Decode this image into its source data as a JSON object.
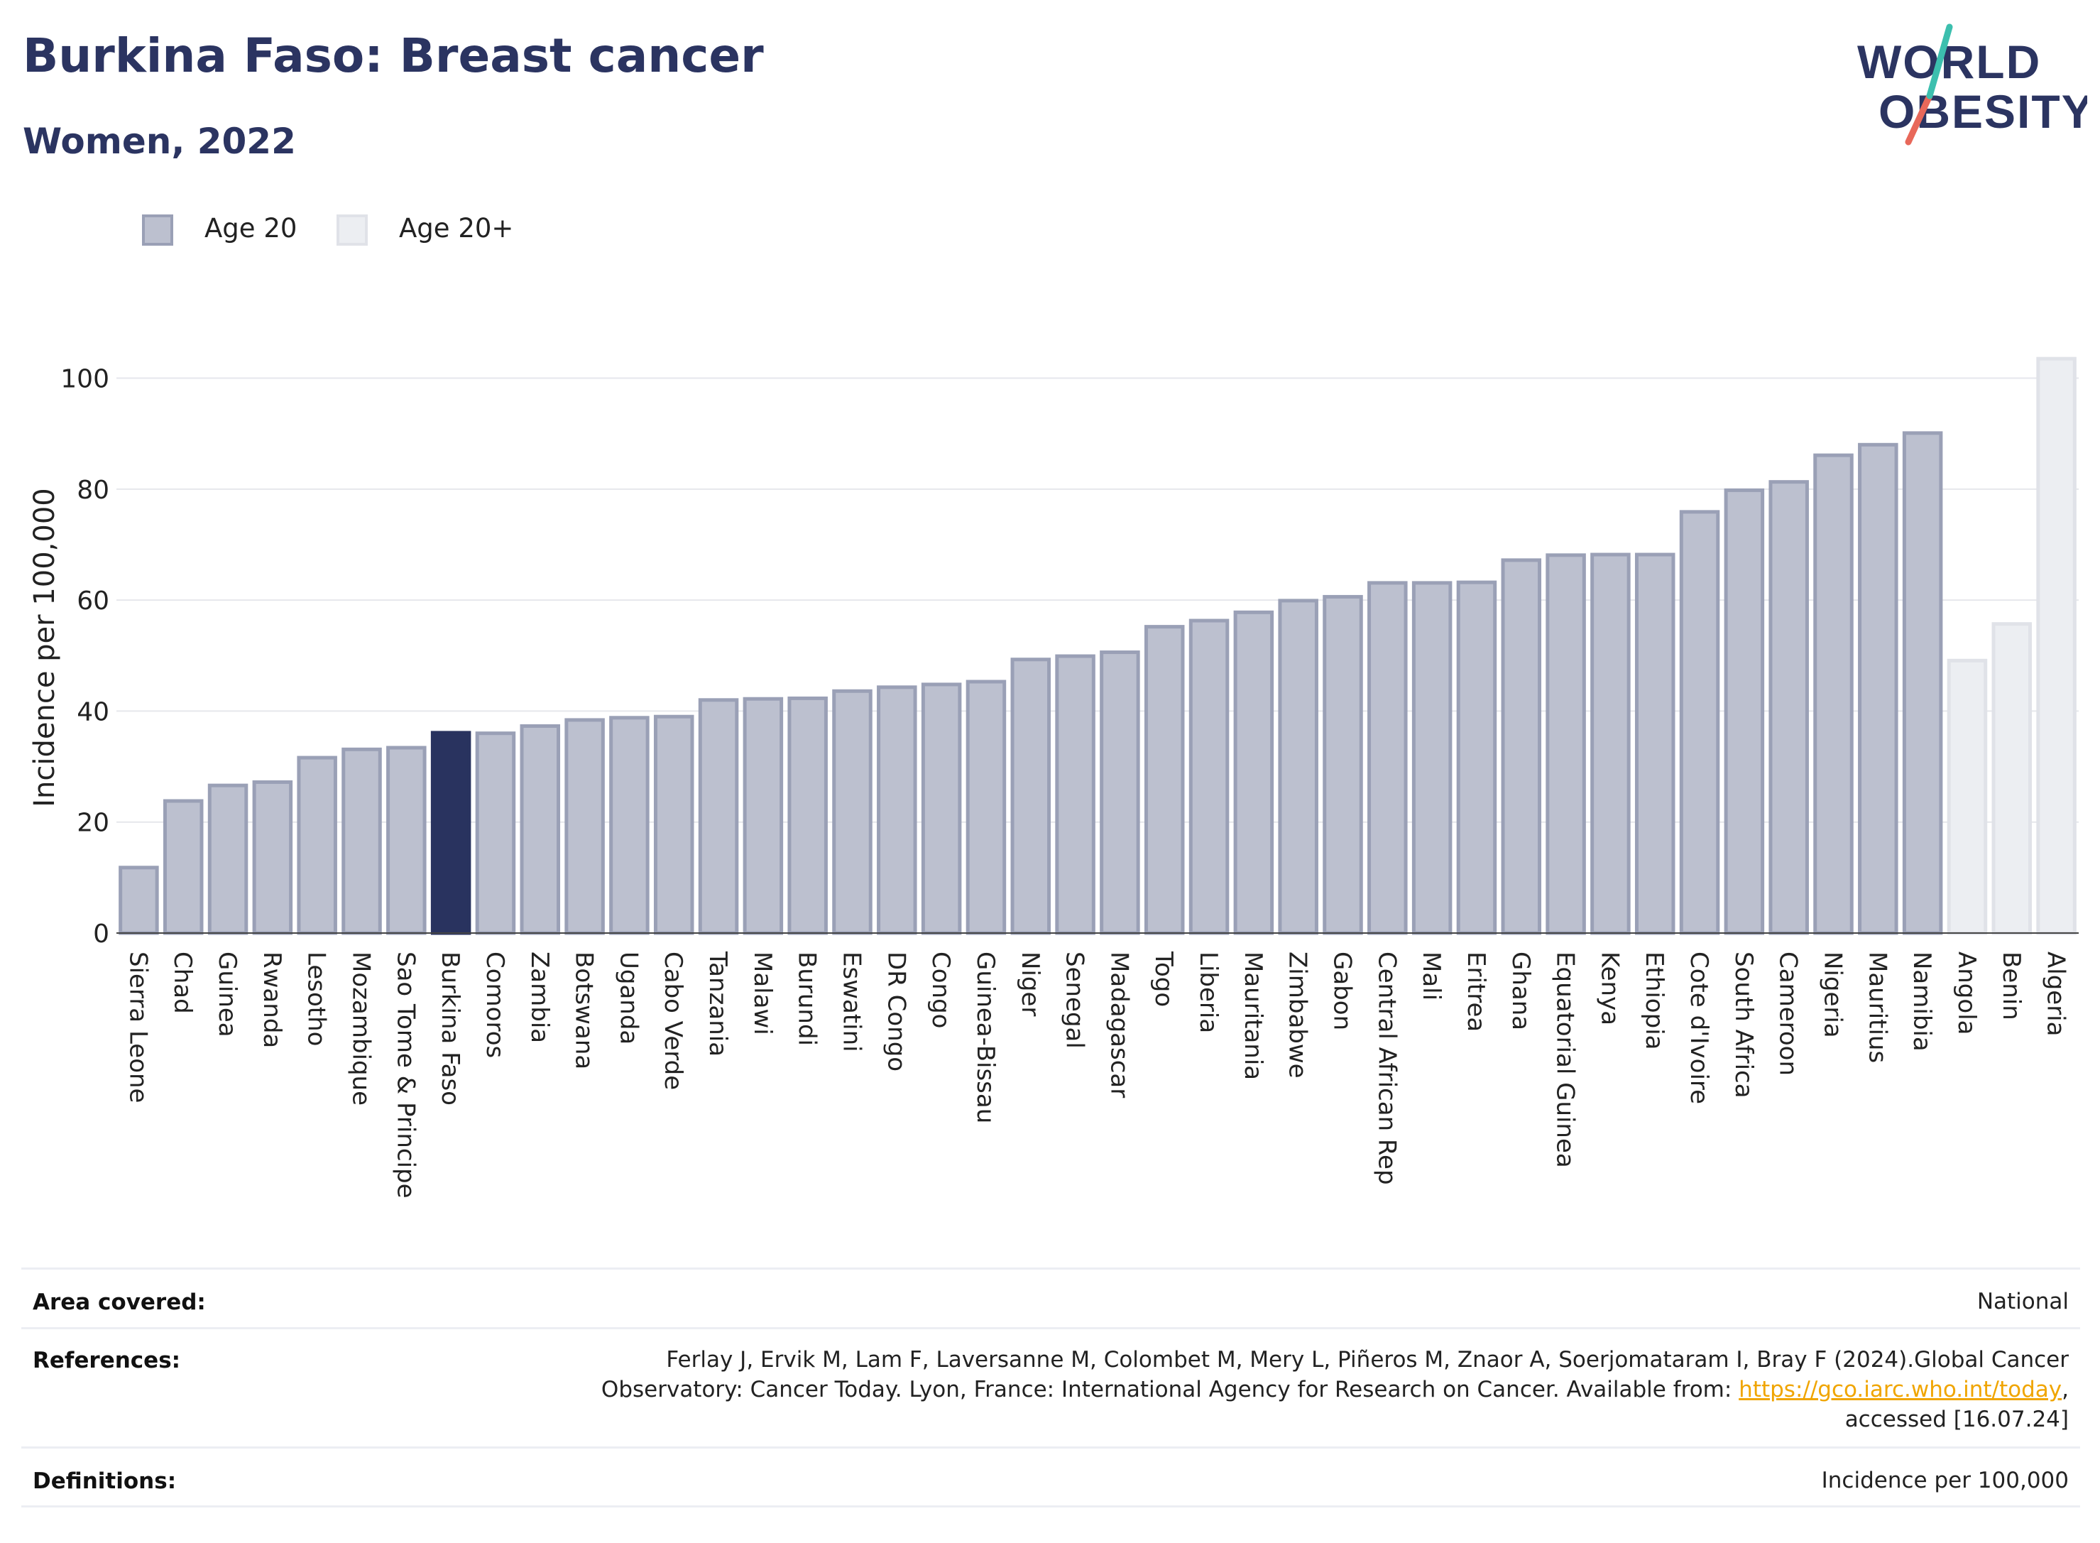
{
  "header": {
    "title": "Burkina Faso: Breast cancer",
    "subtitle": "Women, 2022"
  },
  "logo": {
    "line1": "WORLD",
    "line2": "OBESITY"
  },
  "legend": [
    {
      "label": "Age 20",
      "color": "#bcc0cf",
      "border": "#9aa0b6"
    },
    {
      "label": "Age 20+",
      "color": "#eceef2",
      "border": "#e0e2e8"
    }
  ],
  "chart_data": {
    "type": "bar",
    "ylabel": "Incidence per 100,000",
    "xlabel": "",
    "ylim": [
      0,
      108
    ],
    "yticks": [
      0,
      20,
      40,
      60,
      80,
      100
    ],
    "grid": true,
    "legend_position": "top-left",
    "highlight": "Burkina Faso",
    "highlight_color": "#29335f",
    "categories": [
      "Sierra Leone",
      "Chad",
      "Guinea",
      "Rwanda",
      "Lesotho",
      "Mozambique",
      "Sao Tome & Principe",
      "Burkina Faso",
      "Comoros",
      "Zambia",
      "Botswana",
      "Uganda",
      "Cabo Verde",
      "Tanzania",
      "Malawi",
      "Burundi",
      "Eswatini",
      "DR Congo",
      "Congo",
      "Guinea-Bissau",
      "Niger",
      "Senegal",
      "Madagascar",
      "Togo",
      "Liberia",
      "Mauritania",
      "Zimbabwe",
      "Gabon",
      "Central African Rep",
      "Mali",
      "Eritrea",
      "Ghana",
      "Equatorial Guinea",
      "Kenya",
      "Ethiopia",
      "Cote d'Ivoire",
      "South Africa",
      "Cameroon",
      "Nigeria",
      "Mauritius",
      "Namibia",
      "Angola",
      "Benin",
      "Algeria"
    ],
    "values": [
      11.8,
      23.8,
      26.6,
      27.2,
      31.6,
      33.1,
      33.4,
      36.1,
      36.0,
      37.3,
      38.4,
      38.8,
      39.0,
      42.0,
      42.2,
      42.3,
      43.6,
      44.3,
      44.8,
      45.3,
      49.3,
      49.9,
      50.6,
      55.2,
      56.3,
      57.8,
      59.9,
      60.6,
      63.1,
      63.1,
      63.2,
      67.2,
      68.1,
      68.2,
      68.2,
      75.9,
      79.8,
      81.3,
      86.1,
      88.0,
      90.1,
      49.1,
      55.7,
      103.5
    ],
    "series_group": [
      "Age 20",
      "Age 20",
      "Age 20",
      "Age 20",
      "Age 20",
      "Age 20",
      "Age 20",
      "Age 20",
      "Age 20",
      "Age 20",
      "Age 20",
      "Age 20",
      "Age 20",
      "Age 20",
      "Age 20",
      "Age 20",
      "Age 20",
      "Age 20",
      "Age 20",
      "Age 20",
      "Age 20",
      "Age 20",
      "Age 20",
      "Age 20",
      "Age 20",
      "Age 20",
      "Age 20",
      "Age 20",
      "Age 20",
      "Age 20",
      "Age 20",
      "Age 20",
      "Age 20",
      "Age 20",
      "Age 20",
      "Age 20",
      "Age 20",
      "Age 20",
      "Age 20",
      "Age 20",
      "Age 20",
      "Age 20+",
      "Age 20+",
      "Age 20+"
    ]
  },
  "footer": {
    "area_label": "Area covered:",
    "area_value": "National",
    "references_label": "References:",
    "references_line1": "Ferlay J, Ervik M, Lam F, Laversanne M, Colombet M, Mery L, Piñeros M, Znaor A, Soerjomataram I, Bray F (2024).Global Cancer",
    "references_line2": "Observatory: Cancer Today. Lyon, France: International Agency for Research on Cancer. Available from: ",
    "references_link": "https://gco.iarc.who.int/today",
    "references_line2_end": ",",
    "references_line3": "accessed [16.07.24]",
    "definitions_label": "Definitions:",
    "definitions_value": "Incidence per 100,000"
  }
}
